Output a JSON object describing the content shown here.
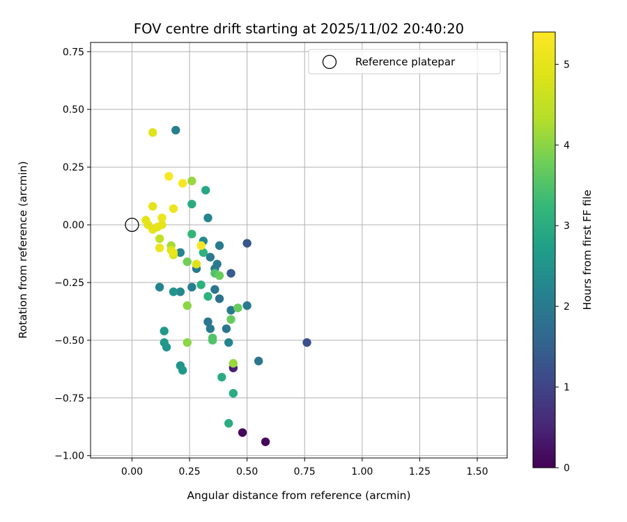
{
  "chart_data": {
    "type": "scatter",
    "title": "FOV centre drift starting at 2025/11/02 20:40:20",
    "xlabel": "Angular distance from reference (arcmin)",
    "ylabel": "Rotation from reference (arcmin)",
    "xlim": [
      -0.18,
      1.63
    ],
    "ylim": [
      -1.01,
      0.79
    ],
    "x_ticks": [
      0.0,
      0.25,
      0.5,
      0.75,
      1.0,
      1.25,
      1.5
    ],
    "x_tick_labels": [
      "0.00",
      "0.25",
      "0.50",
      "0.75",
      "1.00",
      "1.25",
      "1.50"
    ],
    "y_ticks": [
      -1.0,
      -0.75,
      -0.5,
      -0.25,
      0.0,
      0.25,
      0.5,
      0.75
    ],
    "y_tick_labels": [
      "−1.00",
      "−0.75",
      "−0.50",
      "−0.25",
      "0.00",
      "0.25",
      "0.50",
      "0.75"
    ],
    "grid": true,
    "legend": {
      "position": "top-right",
      "entries": [
        "Reference platepar"
      ]
    },
    "reference_point": {
      "x": 0.0,
      "y": 0.0
    },
    "colorbar": {
      "label": "Hours from first FF file",
      "colormap": "viridis",
      "range": [
        0,
        5.4
      ],
      "ticks": [
        0,
        1,
        2,
        3,
        4,
        5
      ],
      "tick_labels": [
        "0",
        "1",
        "2",
        "3",
        "4",
        "5"
      ]
    },
    "points": [
      {
        "x": 0.58,
        "y": -0.94,
        "t": 0.1
      },
      {
        "x": 0.48,
        "y": -0.9,
        "t": 0.1
      },
      {
        "x": 0.44,
        "y": -0.62,
        "t": 0.4
      },
      {
        "x": 0.76,
        "y": -0.51,
        "t": 1.2
      },
      {
        "x": 0.5,
        "y": -0.08,
        "t": 1.3
      },
      {
        "x": 0.43,
        "y": -0.21,
        "t": 1.4
      },
      {
        "x": 0.55,
        "y": -0.59,
        "t": 1.9
      },
      {
        "x": 0.41,
        "y": -0.45,
        "t": 1.9
      },
      {
        "x": 0.5,
        "y": -0.35,
        "t": 2.0
      },
      {
        "x": 0.43,
        "y": -0.37,
        "t": 2.0
      },
      {
        "x": 0.38,
        "y": -0.32,
        "t": 1.8
      },
      {
        "x": 0.38,
        "y": -0.09,
        "t": 2.0
      },
      {
        "x": 0.36,
        "y": -0.28,
        "t": 1.9
      },
      {
        "x": 0.37,
        "y": -0.17,
        "t": 2.0
      },
      {
        "x": 0.36,
        "y": -0.19,
        "t": 2.0
      },
      {
        "x": 0.34,
        "y": -0.14,
        "t": 2.0
      },
      {
        "x": 0.33,
        "y": -0.42,
        "t": 1.9
      },
      {
        "x": 0.34,
        "y": -0.45,
        "t": 2.0
      },
      {
        "x": 0.42,
        "y": -0.51,
        "t": 2.2
      },
      {
        "x": 0.19,
        "y": 0.41,
        "t": 2.1
      },
      {
        "x": 0.33,
        "y": 0.03,
        "t": 2.2
      },
      {
        "x": 0.31,
        "y": -0.07,
        "t": 2.3
      },
      {
        "x": 0.28,
        "y": -0.19,
        "t": 2.0
      },
      {
        "x": 0.26,
        "y": -0.27,
        "t": 2.1
      },
      {
        "x": 0.21,
        "y": -0.12,
        "t": 2.2
      },
      {
        "x": 0.12,
        "y": -0.27,
        "t": 2.2
      },
      {
        "x": 0.21,
        "y": -0.29,
        "t": 2.3
      },
      {
        "x": 0.18,
        "y": -0.29,
        "t": 2.5
      },
      {
        "x": 0.15,
        "y": -0.53,
        "t": 2.5
      },
      {
        "x": 0.14,
        "y": -0.51,
        "t": 2.6
      },
      {
        "x": 0.14,
        "y": -0.46,
        "t": 2.6
      },
      {
        "x": 0.21,
        "y": -0.61,
        "t": 2.5
      },
      {
        "x": 0.22,
        "y": -0.63,
        "t": 2.6
      },
      {
        "x": 0.32,
        "y": 0.15,
        "t": 2.9
      },
      {
        "x": 0.26,
        "y": 0.09,
        "t": 3.0
      },
      {
        "x": 0.26,
        "y": -0.04,
        "t": 3.2
      },
      {
        "x": 0.31,
        "y": -0.12,
        "t": 3.1
      },
      {
        "x": 0.3,
        "y": -0.26,
        "t": 3.1
      },
      {
        "x": 0.33,
        "y": -0.31,
        "t": 3.1
      },
      {
        "x": 0.39,
        "y": -0.66,
        "t": 3.0
      },
      {
        "x": 0.44,
        "y": -0.73,
        "t": 3.0
      },
      {
        "x": 0.42,
        "y": -0.86,
        "t": 3.0
      },
      {
        "x": 0.35,
        "y": -0.49,
        "t": 3.5
      },
      {
        "x": 0.35,
        "y": -0.5,
        "t": 3.5
      },
      {
        "x": 0.36,
        "y": -0.21,
        "t": 3.5
      },
      {
        "x": 0.38,
        "y": -0.22,
        "t": 3.7
      },
      {
        "x": 0.43,
        "y": -0.41,
        "t": 3.7
      },
      {
        "x": 0.46,
        "y": -0.36,
        "t": 3.7
      },
      {
        "x": 0.24,
        "y": -0.16,
        "t": 3.8
      },
      {
        "x": 0.24,
        "y": -0.35,
        "t": 4.0
      },
      {
        "x": 0.24,
        "y": -0.51,
        "t": 4.0
      },
      {
        "x": 0.44,
        "y": -0.6,
        "t": 4.1
      },
      {
        "x": 0.26,
        "y": 0.19,
        "t": 4.1
      },
      {
        "x": 0.17,
        "y": -0.09,
        "t": 4.2
      },
      {
        "x": 0.12,
        "y": -0.06,
        "t": 4.5
      },
      {
        "x": 0.18,
        "y": -0.13,
        "t": 4.8
      },
      {
        "x": 0.17,
        "y": -0.11,
        "t": 4.9
      },
      {
        "x": 0.28,
        "y": -0.17,
        "t": 4.9
      },
      {
        "x": 0.09,
        "y": 0.4,
        "t": 4.9
      },
      {
        "x": 0.06,
        "y": 0.02,
        "t": 5.0
      },
      {
        "x": 0.07,
        "y": 0.0,
        "t": 5.0
      },
      {
        "x": 0.09,
        "y": 0.08,
        "t": 5.0
      },
      {
        "x": 0.09,
        "y": -0.02,
        "t": 5.0
      },
      {
        "x": 0.11,
        "y": -0.01,
        "t": 5.0
      },
      {
        "x": 0.13,
        "y": 0.0,
        "t": 5.0
      },
      {
        "x": 0.13,
        "y": 0.03,
        "t": 5.1
      },
      {
        "x": 0.12,
        "y": -0.1,
        "t": 5.1
      },
      {
        "x": 0.18,
        "y": 0.07,
        "t": 5.1
      },
      {
        "x": 0.18,
        "y": -0.12,
        "t": 5.1
      },
      {
        "x": 0.22,
        "y": 0.18,
        "t": 5.3
      },
      {
        "x": 0.16,
        "y": 0.21,
        "t": 5.3
      },
      {
        "x": 0.3,
        "y": -0.09,
        "t": 5.3
      }
    ]
  }
}
